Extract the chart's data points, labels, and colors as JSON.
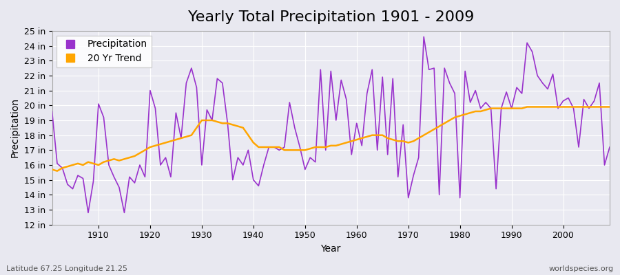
{
  "title": "Yearly Total Precipitation 1901 - 2009",
  "xlabel": "Year",
  "ylabel": "Precipitation",
  "subtitle": "Latitude 67.25 Longitude 21.25",
  "watermark": "worldspecies.org",
  "years": [
    1901,
    1902,
    1903,
    1904,
    1905,
    1906,
    1907,
    1908,
    1909,
    1910,
    1911,
    1912,
    1913,
    1914,
    1915,
    1916,
    1917,
    1918,
    1919,
    1920,
    1921,
    1922,
    1923,
    1924,
    1925,
    1926,
    1927,
    1928,
    1929,
    1930,
    1931,
    1932,
    1933,
    1934,
    1935,
    1936,
    1937,
    1938,
    1939,
    1940,
    1941,
    1942,
    1943,
    1944,
    1945,
    1946,
    1947,
    1948,
    1949,
    1950,
    1951,
    1952,
    1953,
    1954,
    1955,
    1956,
    1957,
    1958,
    1959,
    1960,
    1961,
    1962,
    1963,
    1964,
    1965,
    1966,
    1967,
    1968,
    1969,
    1970,
    1971,
    1972,
    1973,
    1974,
    1975,
    1976,
    1977,
    1978,
    1979,
    1980,
    1981,
    1982,
    1983,
    1984,
    1985,
    1986,
    1987,
    1988,
    1989,
    1990,
    1991,
    1992,
    1993,
    1994,
    1995,
    1996,
    1997,
    1998,
    1999,
    2000,
    2001,
    2002,
    2003,
    2004,
    2005,
    2006,
    2007,
    2008,
    2009
  ],
  "precipitation": [
    19.6,
    16.1,
    15.8,
    14.7,
    14.4,
    15.3,
    15.1,
    12.8,
    14.9,
    20.1,
    19.2,
    16.0,
    15.2,
    14.5,
    12.8,
    15.2,
    14.8,
    16.0,
    15.2,
    21.0,
    19.8,
    16.0,
    16.5,
    15.2,
    19.5,
    17.8,
    21.5,
    22.5,
    21.2,
    16.0,
    19.7,
    19.0,
    21.8,
    21.5,
    18.8,
    15.0,
    16.5,
    16.0,
    17.0,
    15.0,
    14.6,
    16.0,
    17.2,
    17.2,
    17.0,
    17.2,
    20.2,
    18.5,
    17.2,
    15.7,
    16.5,
    16.2,
    22.4,
    17.0,
    22.3,
    19.0,
    21.7,
    20.4,
    16.7,
    18.8,
    17.3,
    20.8,
    22.4,
    17.0,
    21.9,
    16.7,
    21.8,
    15.2,
    18.7,
    13.8,
    15.3,
    16.5,
    24.6,
    22.4,
    22.5,
    14.0,
    22.5,
    21.5,
    20.8,
    13.8,
    22.3,
    20.2,
    21.0,
    19.8,
    20.2,
    19.8,
    14.4,
    19.8,
    20.9,
    19.8,
    21.2,
    20.8,
    24.2,
    23.6,
    22.0,
    21.5,
    21.1,
    22.1,
    19.8,
    20.3,
    20.5,
    19.8,
    17.2,
    20.4,
    19.8,
    20.3,
    21.5,
    16.0,
    17.2
  ],
  "trend": [
    15.7,
    15.6,
    15.8,
    15.9,
    16.0,
    16.1,
    16.0,
    16.2,
    16.1,
    16.0,
    16.2,
    16.3,
    16.4,
    16.3,
    16.4,
    16.5,
    16.6,
    16.8,
    17.0,
    17.2,
    17.3,
    17.4,
    17.5,
    17.6,
    17.7,
    17.8,
    17.9,
    18.0,
    18.5,
    19.0,
    19.0,
    19.0,
    18.9,
    18.8,
    18.8,
    18.7,
    18.6,
    18.5,
    18.0,
    17.5,
    17.2,
    17.2,
    17.2,
    17.2,
    17.2,
    17.0,
    17.0,
    17.0,
    17.0,
    17.0,
    17.1,
    17.2,
    17.2,
    17.2,
    17.3,
    17.3,
    17.4,
    17.5,
    17.6,
    17.7,
    17.8,
    17.9,
    18.0,
    18.0,
    18.0,
    17.8,
    17.7,
    17.6,
    17.6,
    17.5,
    17.6,
    17.8,
    18.0,
    18.2,
    18.4,
    18.6,
    18.8,
    19.0,
    19.2,
    19.3,
    19.4,
    19.5,
    19.6,
    19.6,
    19.7,
    19.8,
    19.8,
    19.8,
    19.8,
    19.8,
    19.8,
    19.8,
    19.9,
    19.9,
    19.9,
    19.9,
    19.9,
    19.9,
    19.9,
    19.9,
    19.9,
    19.9,
    19.9,
    19.9,
    19.9,
    19.9,
    19.9,
    19.9,
    19.9
  ],
  "precip_color": "#9932CC",
  "trend_color": "#FFA500",
  "background_color": "#E8E8F0",
  "plot_bg_color": "#EAEAF2",
  "grid_color": "#FFFFFF",
  "ylim": [
    12,
    25
  ],
  "yticks": [
    12,
    13,
    14,
    15,
    16,
    17,
    18,
    19,
    20,
    21,
    22,
    23,
    24,
    25
  ],
  "xlim": [
    1901,
    2009
  ],
  "xticks": [
    1910,
    1920,
    1930,
    1940,
    1950,
    1960,
    1970,
    1980,
    1990,
    2000
  ],
  "title_fontsize": 16,
  "label_fontsize": 10,
  "tick_fontsize": 9,
  "legend_labels": [
    "Precipitation",
    "20 Yr Trend"
  ]
}
